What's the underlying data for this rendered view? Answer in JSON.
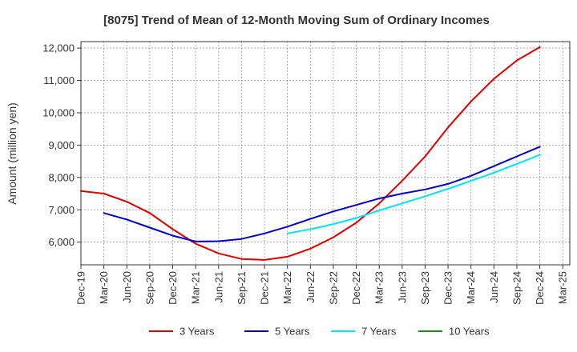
{
  "chart_data": {
    "type": "line",
    "title": "[8075]  Trend of Mean of 12-Month Moving Sum of Ordinary Incomes",
    "xlabel": "",
    "ylabel": "Amount (million yen)",
    "ylim": [
      5300,
      12200
    ],
    "yticks": [
      6000,
      7000,
      8000,
      9000,
      10000,
      11000,
      12000
    ],
    "ytick_labels": [
      "6,000",
      "7,000",
      "8,000",
      "9,000",
      "10,000",
      "11,000",
      "12,000"
    ],
    "x_categories": [
      "Dec-19",
      "Mar-20",
      "Jun-20",
      "Sep-20",
      "Dec-20",
      "Mar-21",
      "Jun-21",
      "Sep-21",
      "Dec-21",
      "Mar-22",
      "Jun-22",
      "Sep-22",
      "Dec-22",
      "Mar-23",
      "Jun-23",
      "Sep-23",
      "Dec-23",
      "Mar-24",
      "Jun-24",
      "Sep-24",
      "Dec-24",
      "Mar-25"
    ],
    "series": [
      {
        "name": "3 Years",
        "color": "#dd0000",
        "start_index": 0,
        "values": [
          7580,
          7500,
          7250,
          6900,
          6400,
          5950,
          5650,
          5480,
          5450,
          5550,
          5800,
          6150,
          6600,
          7200,
          7900,
          8650,
          9550,
          10350,
          11050,
          11620,
          12030
        ]
      },
      {
        "name": "5 Years",
        "color": "#0000cc",
        "start_index": 1,
        "values": [
          6900,
          6700,
          6450,
          6200,
          6020,
          6030,
          6100,
          6270,
          6480,
          6720,
          6950,
          7150,
          7350,
          7500,
          7630,
          7800,
          8050,
          8350,
          8650,
          8950
        ]
      },
      {
        "name": "7 Years",
        "color": "#00e5ee",
        "start_index": 9,
        "values": [
          6270,
          6400,
          6560,
          6750,
          6980,
          7200,
          7420,
          7650,
          7900,
          8150,
          8420,
          8700
        ]
      },
      {
        "name": "10 Years",
        "color": "#228b22",
        "start_index": 0,
        "values": []
      }
    ],
    "grid": true,
    "legend_position": "bottom"
  }
}
